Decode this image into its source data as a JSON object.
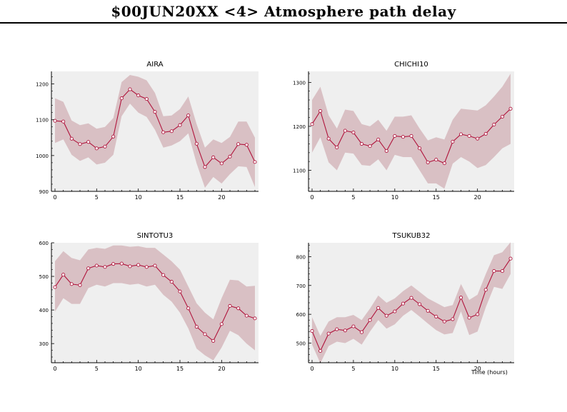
{
  "title": "$00JUN20XX <4>  Atmosphere path delay",
  "x_unit_label": "Time (hours)",
  "colors": {
    "background": "#efefef",
    "band": "#d9c0c4",
    "line": "#b0143c",
    "axis": "#000000"
  },
  "chart_data": [
    {
      "type": "line",
      "title": "AIRA",
      "xlim": [
        0,
        24
      ],
      "xticks": [
        0,
        5,
        10,
        15,
        20
      ],
      "ylim": [
        900,
        1235
      ],
      "yticks": [
        900,
        1000,
        1100,
        1200
      ],
      "x": [
        0,
        1,
        2,
        3,
        4,
        5,
        6,
        7,
        8,
        9,
        10,
        11,
        12,
        13,
        14,
        15,
        16,
        17,
        18,
        19,
        20,
        21,
        22,
        23,
        24
      ],
      "series": [
        {
          "values": [
            1097,
            1095,
            1047,
            1032,
            1038,
            1020,
            1025,
            1053,
            1160,
            1185,
            1168,
            1158,
            1122,
            1065,
            1068,
            1085,
            1112,
            1033,
            968,
            995,
            978,
            997,
            1032,
            1030,
            982
          ],
          "upper": [
            1160,
            1150,
            1098,
            1085,
            1090,
            1075,
            1080,
            1105,
            1205,
            1225,
            1220,
            1210,
            1175,
            1110,
            1112,
            1130,
            1165,
            1088,
            1022,
            1045,
            1035,
            1052,
            1095,
            1095,
            1050
          ],
          "lower": [
            1035,
            1045,
            1002,
            985,
            995,
            975,
            980,
            1002,
            1110,
            1145,
            1120,
            1108,
            1072,
            1022,
            1028,
            1040,
            1062,
            978,
            910,
            940,
            922,
            948,
            970,
            968,
            912
          ]
        }
      ]
    },
    {
      "type": "line",
      "title": "CHICHI10",
      "xlim": [
        0,
        24
      ],
      "xticks": [
        0,
        5,
        10,
        15,
        20
      ],
      "ylim": [
        1052,
        1325
      ],
      "yticks": [
        1100,
        1200,
        1300
      ],
      "x": [
        0,
        1,
        2,
        3,
        4,
        5,
        6,
        7,
        8,
        9,
        10,
        11,
        12,
        13,
        14,
        15,
        16,
        17,
        18,
        19,
        20,
        21,
        22,
        23,
        24
      ],
      "series": [
        {
          "values": [
            1205,
            1235,
            1172,
            1152,
            1190,
            1186,
            1160,
            1155,
            1170,
            1144,
            1178,
            1176,
            1178,
            1150,
            1118,
            1124,
            1116,
            1165,
            1182,
            1178,
            1172,
            1183,
            1204,
            1222,
            1240
          ],
          "upper": [
            1260,
            1290,
            1225,
            1195,
            1238,
            1235,
            1205,
            1200,
            1215,
            1190,
            1222,
            1222,
            1225,
            1195,
            1168,
            1175,
            1170,
            1215,
            1240,
            1238,
            1236,
            1248,
            1268,
            1290,
            1320
          ],
          "lower": [
            1140,
            1175,
            1118,
            1100,
            1140,
            1138,
            1112,
            1110,
            1125,
            1100,
            1135,
            1130,
            1130,
            1100,
            1070,
            1070,
            1058,
            1115,
            1130,
            1120,
            1105,
            1112,
            1130,
            1150,
            1160
          ]
        }
      ]
    },
    {
      "type": "line",
      "title": "SINTOTU3",
      "xlim": [
        0,
        24
      ],
      "xticks": [
        0,
        5,
        10,
        15,
        20
      ],
      "ylim": [
        243,
        600
      ],
      "yticks": [
        300,
        400,
        500,
        600
      ],
      "x": [
        0,
        1,
        2,
        3,
        4,
        5,
        6,
        7,
        8,
        9,
        10,
        11,
        12,
        13,
        14,
        15,
        16,
        17,
        18,
        19,
        20,
        21,
        22,
        23,
        24
      ],
      "series": [
        {
          "values": [
            468,
            505,
            477,
            474,
            524,
            532,
            528,
            537,
            538,
            530,
            534,
            528,
            532,
            504,
            484,
            455,
            405,
            350,
            328,
            308,
            358,
            412,
            405,
            383,
            375
          ],
          "upper": [
            545,
            575,
            555,
            548,
            580,
            585,
            582,
            592,
            592,
            588,
            590,
            585,
            585,
            565,
            545,
            520,
            470,
            420,
            392,
            372,
            435,
            490,
            488,
            470,
            472
          ],
          "lower": [
            395,
            435,
            418,
            418,
            465,
            475,
            470,
            480,
            480,
            475,
            478,
            470,
            475,
            445,
            425,
            392,
            345,
            285,
            265,
            250,
            288,
            338,
            325,
            300,
            280
          ]
        }
      ]
    },
    {
      "type": "line",
      "title": "TSUKUB32",
      "xlim": [
        0,
        24
      ],
      "xticks": [
        0,
        5,
        10,
        15,
        20
      ],
      "ylim": [
        432,
        848
      ],
      "yticks": [
        500,
        600,
        700,
        800
      ],
      "x": [
        0,
        1,
        2,
        3,
        4,
        5,
        6,
        7,
        8,
        9,
        10,
        11,
        12,
        13,
        14,
        15,
        16,
        17,
        18,
        19,
        20,
        21,
        22,
        23,
        24
      ],
      "series": [
        {
          "values": [
            542,
            473,
            533,
            548,
            544,
            558,
            538,
            580,
            622,
            595,
            610,
            637,
            657,
            635,
            612,
            592,
            575,
            583,
            658,
            588,
            600,
            685,
            750,
            750,
            793
          ],
          "upper": [
            590,
            525,
            575,
            590,
            590,
            598,
            580,
            620,
            665,
            640,
            655,
            680,
            700,
            678,
            655,
            640,
            625,
            632,
            705,
            650,
            668,
            740,
            805,
            815,
            850
          ],
          "lower": [
            495,
            430,
            490,
            505,
            500,
            515,
            495,
            540,
            580,
            550,
            565,
            595,
            615,
            592,
            568,
            545,
            530,
            535,
            610,
            528,
            540,
            625,
            695,
            688,
            740
          ]
        }
      ]
    }
  ]
}
